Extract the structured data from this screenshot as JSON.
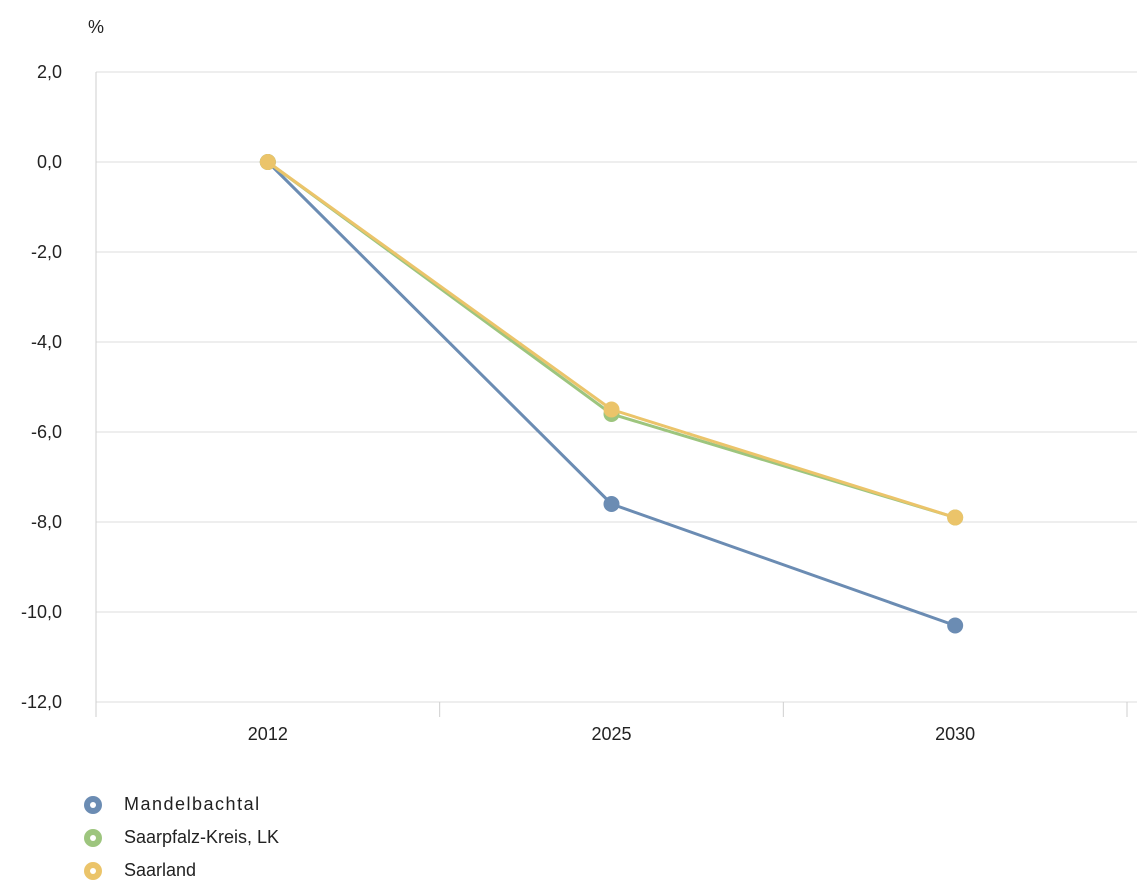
{
  "chart_data": {
    "type": "line",
    "unit_label": "%",
    "categories": [
      "2012",
      "2025",
      "2030"
    ],
    "ylim": [
      -12,
      2
    ],
    "y_ticks": [
      2,
      0,
      -2,
      -4,
      -6,
      -8,
      -10,
      -12
    ],
    "y_tick_labels": [
      "2,0",
      "0,0",
      "-2,0",
      "-4,0",
      "-6,0",
      "-8,0",
      "-10,0",
      "-12,0"
    ],
    "grid": true,
    "legend_position": "bottom-left",
    "series": [
      {
        "name": "Mandelbachtal",
        "color": "#6b8cb3",
        "values": [
          0.0,
          -7.6,
          -10.3
        ]
      },
      {
        "name": "Saarpfalz-Kreis, LK",
        "color": "#9dc57e",
        "values": [
          0.0,
          -5.6,
          -7.9
        ]
      },
      {
        "name": "Saarland",
        "color": "#ebc46a",
        "values": [
          0.0,
          -5.5,
          -7.9
        ]
      }
    ]
  }
}
